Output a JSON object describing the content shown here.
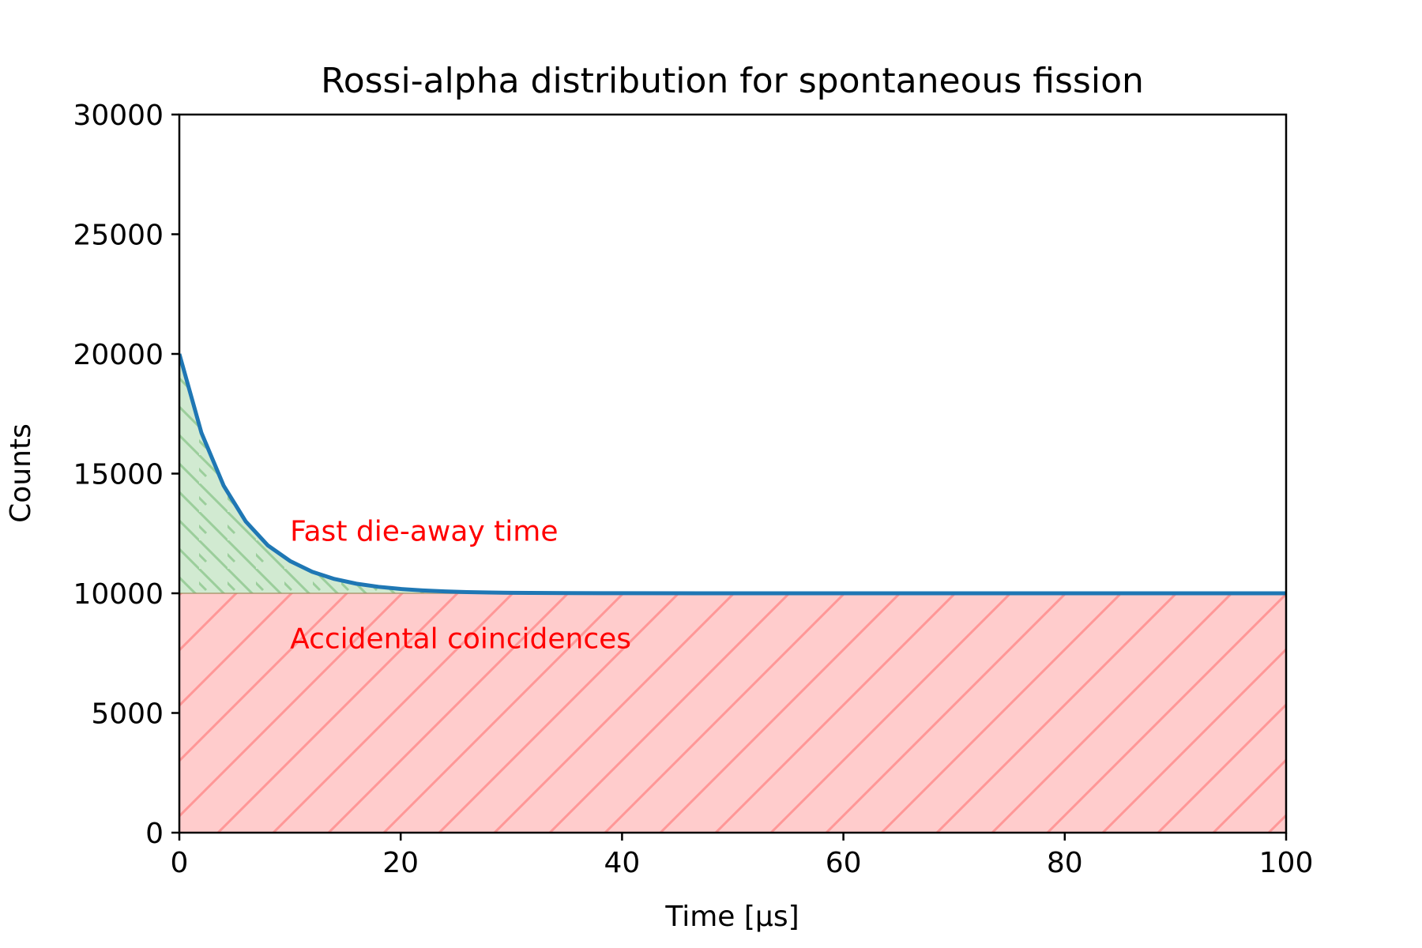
{
  "chart_data": {
    "type": "area",
    "title": "Rossi-alpha distribution for spontaneous fission",
    "xlabel": "Time [μs]",
    "ylabel": "Counts",
    "xlim": [
      0,
      100
    ],
    "ylim": [
      0,
      30000
    ],
    "xticks": [
      0,
      20,
      40,
      60,
      80,
      100
    ],
    "yticks": [
      0,
      5000,
      10000,
      15000,
      20000,
      25000,
      30000
    ],
    "grid": false,
    "baseline": 10000,
    "decay_curve": {
      "x": [
        0,
        2,
        4,
        6,
        8,
        10,
        12,
        14,
        16,
        18,
        20,
        22,
        24,
        26,
        28,
        30,
        35,
        40,
        50,
        60,
        70,
        80,
        90,
        100
      ],
      "y": [
        20000,
        16700,
        14500,
        13000,
        12000,
        11350,
        10900,
        10600,
        10400,
        10270,
        10180,
        10120,
        10080,
        10050,
        10035,
        10020,
        10008,
        10003,
        10000,
        10000,
        10000,
        10000,
        10000,
        10000
      ],
      "color": "#1f77b4"
    },
    "regions": [
      {
        "name": "fast-die-away",
        "fill": "#2ca02c",
        "hatch": "\\"
      },
      {
        "name": "accidental",
        "fill": "#ff0000",
        "hatch": "/"
      }
    ],
    "annotations": [
      {
        "text": "Fast die-away time",
        "x": 10,
        "y": 12200,
        "color": "#ff0000"
      },
      {
        "text": "Accidental coincidences",
        "x": 10,
        "y": 7700,
        "color": "#ff0000"
      }
    ]
  }
}
